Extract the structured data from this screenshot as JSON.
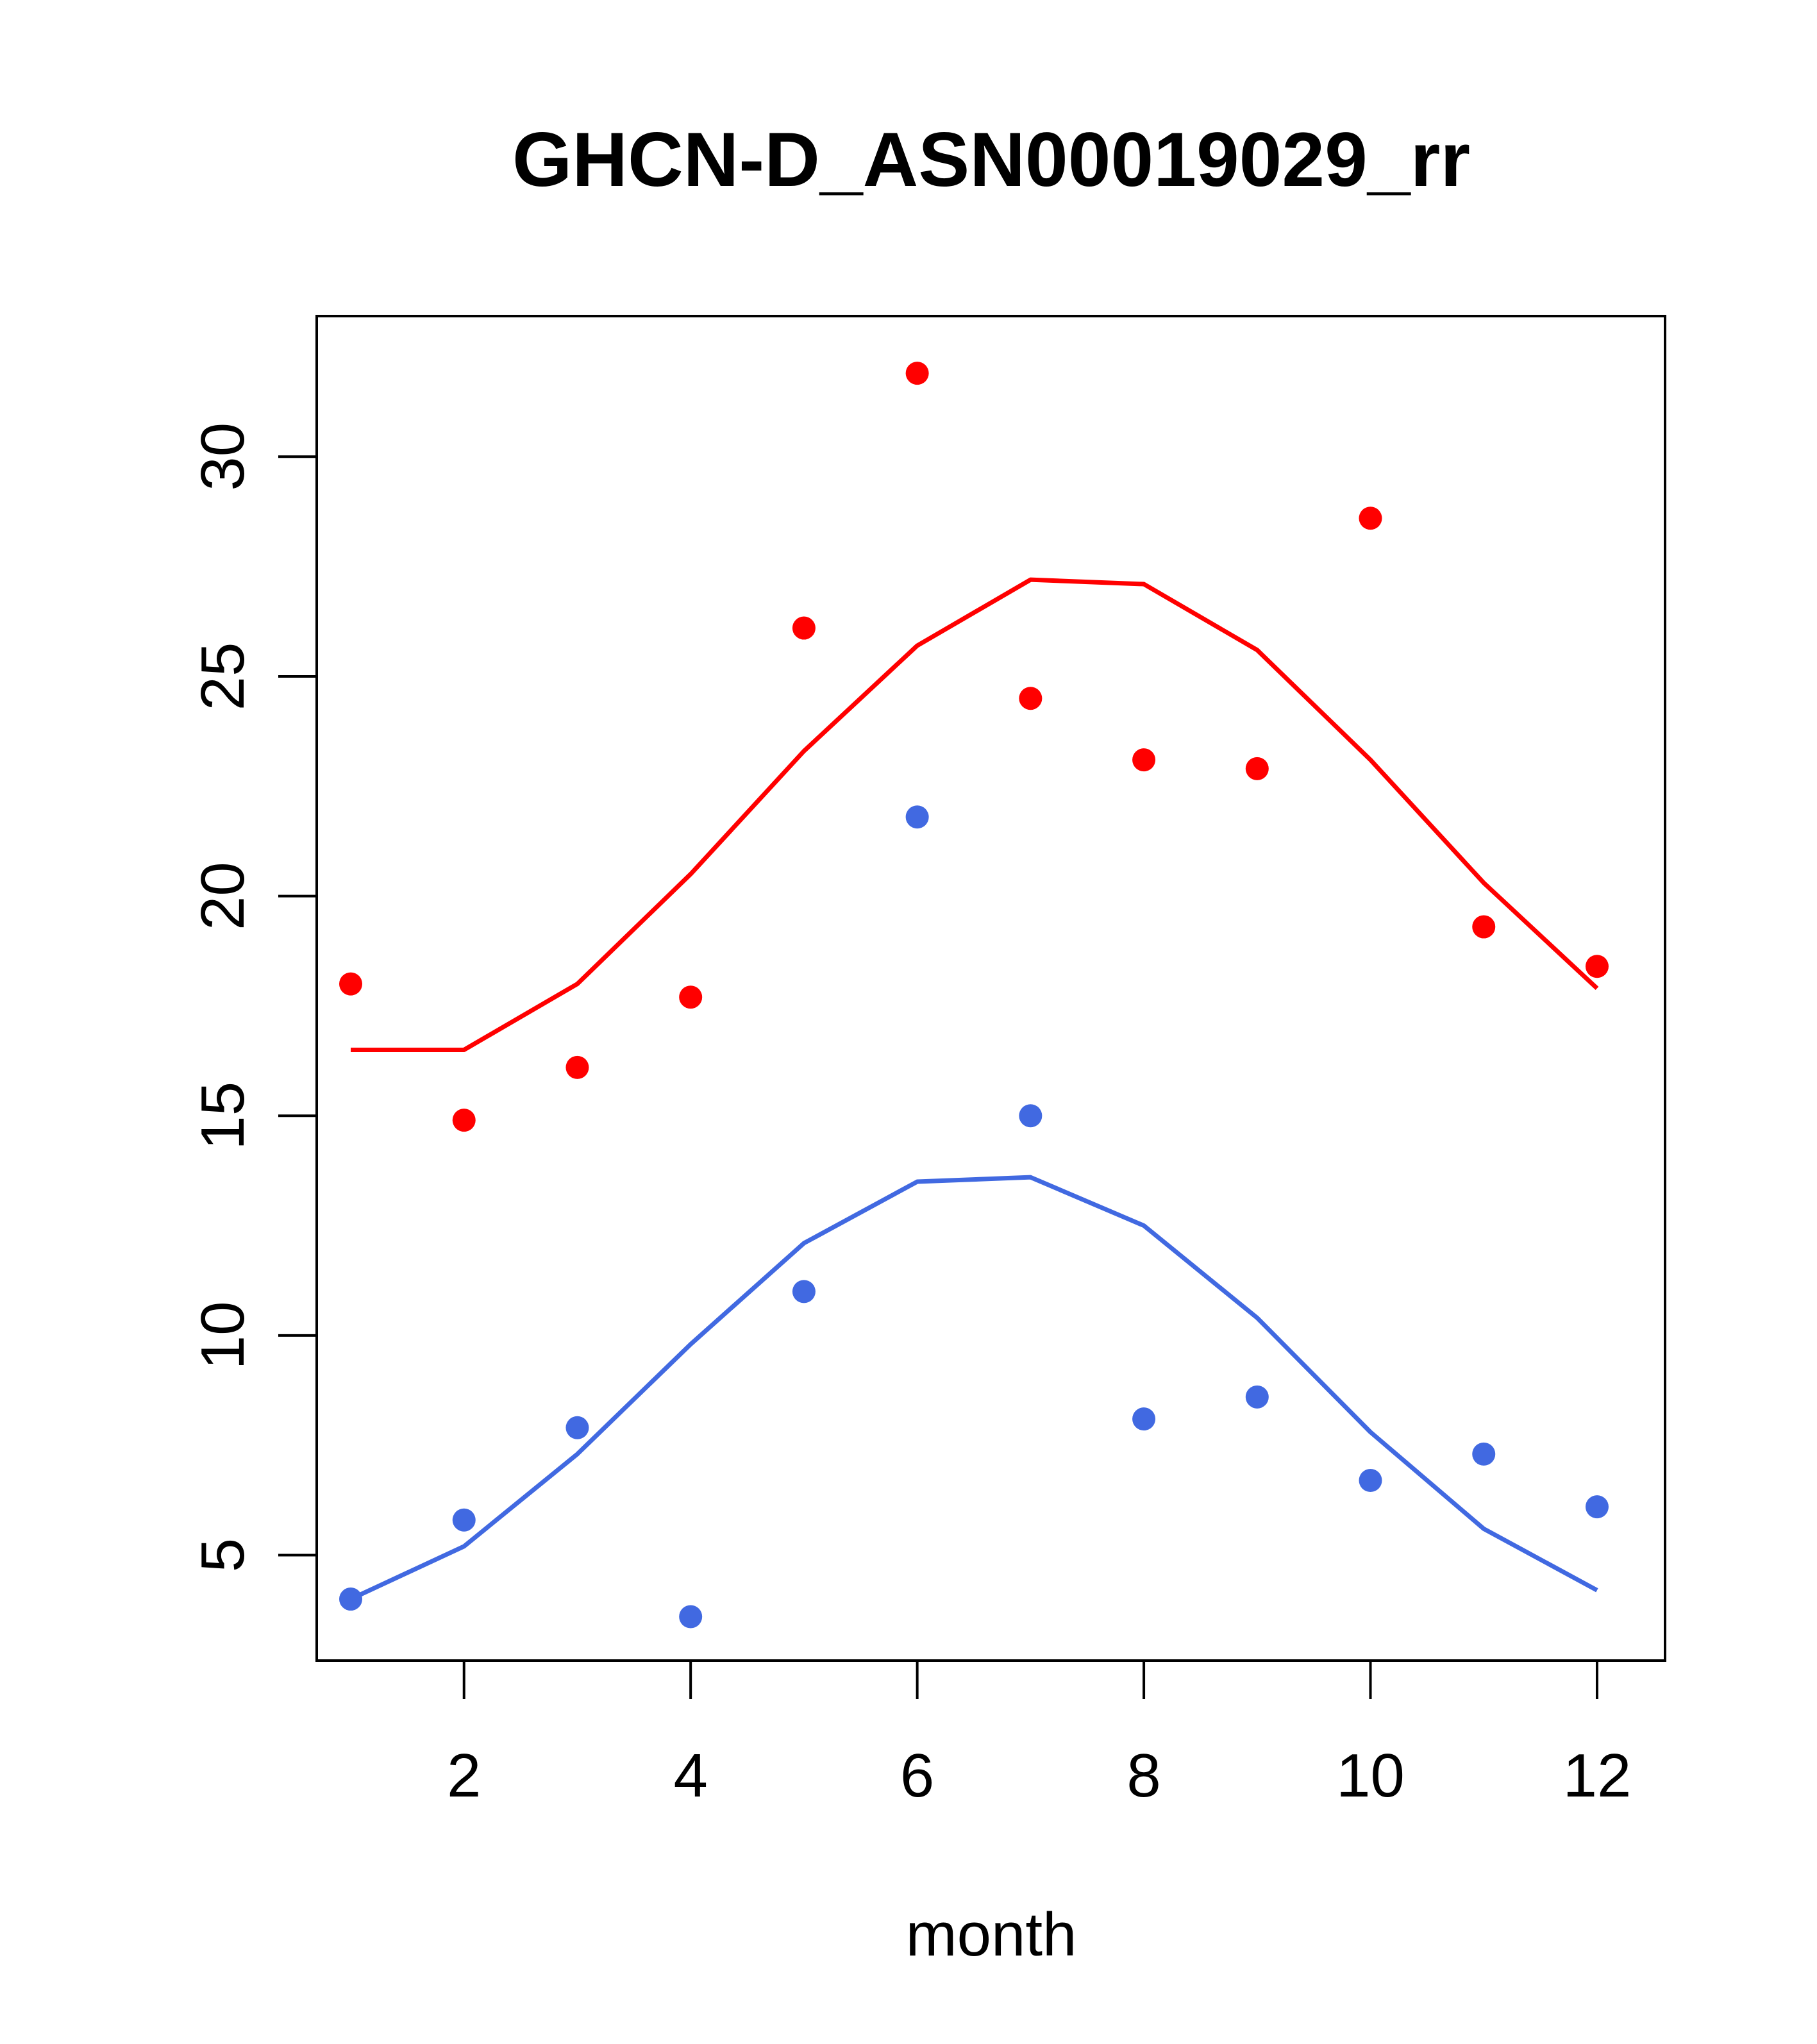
{
  "chart_data": {
    "type": "scatter",
    "title": "GHCN-D_ASN00019029_rr",
    "xlabel": "month",
    "ylabel": "",
    "xlim": [
      0.7,
      12.6
    ],
    "ylim": [
      2.6,
      33.2
    ],
    "x_ticks": [
      2,
      4,
      6,
      8,
      10,
      12
    ],
    "y_ticks": [
      5,
      10,
      15,
      20,
      25,
      30
    ],
    "grid": false,
    "series": [
      {
        "kind": "points",
        "color": "#ff0000",
        "x": [
          1,
          2,
          3,
          4,
          5,
          6,
          7,
          8,
          9,
          10,
          11,
          12
        ],
        "y": [
          18.0,
          14.9,
          16.1,
          17.7,
          26.1,
          31.9,
          24.5,
          23.1,
          22.9,
          28.6,
          19.3,
          18.4
        ]
      },
      {
        "kind": "line",
        "color": "#ff0000",
        "x": [
          1,
          2,
          3,
          4,
          5,
          6,
          7,
          8,
          9,
          10,
          11,
          12
        ],
        "y": [
          16.5,
          16.5,
          18.0,
          20.5,
          23.3,
          25.7,
          27.2,
          27.1,
          25.6,
          23.1,
          20.3,
          17.9
        ]
      },
      {
        "kind": "points",
        "color": "#4169e1",
        "x": [
          1,
          2,
          3,
          4,
          5,
          6,
          7,
          8,
          9,
          10,
          11,
          12
        ],
        "y": [
          4.0,
          5.8,
          7.9,
          3.6,
          11.0,
          21.8,
          15.0,
          8.1,
          8.6,
          6.7,
          7.3,
          6.1
        ]
      },
      {
        "kind": "line",
        "color": "#4169e1",
        "x": [
          1,
          2,
          3,
          4,
          5,
          6,
          7,
          8,
          9,
          10,
          11,
          12
        ],
        "y": [
          4.0,
          5.2,
          7.3,
          9.8,
          12.1,
          13.5,
          13.6,
          12.5,
          10.4,
          7.8,
          5.6,
          4.2
        ]
      }
    ]
  }
}
